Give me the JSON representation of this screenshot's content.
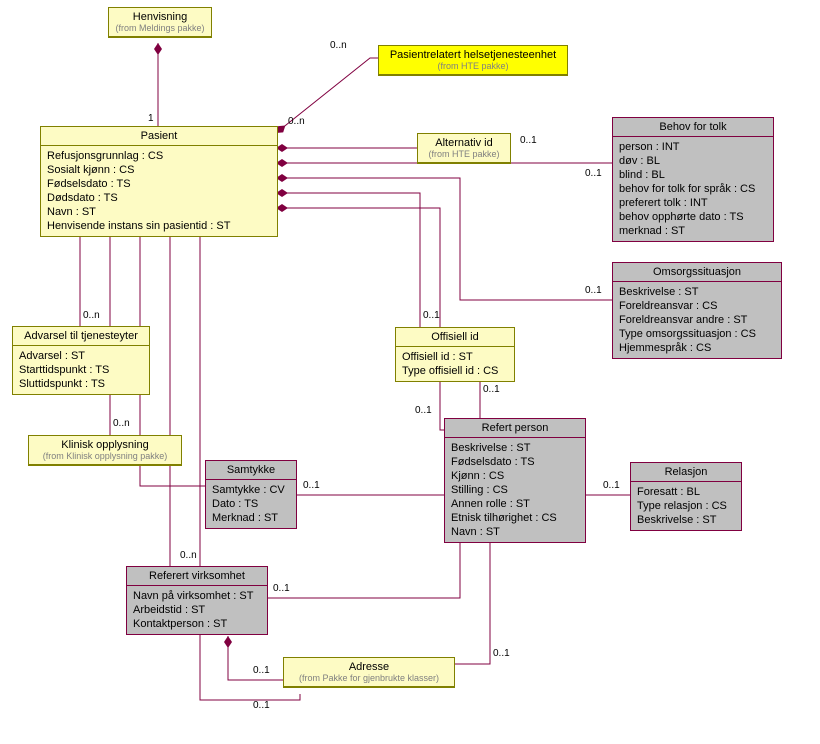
{
  "colors": {
    "yellow": "#fdfbc4",
    "yellowBorder": "#808000",
    "bright": "#ffff00",
    "brightBorder": "#808000",
    "gray": "#c0c0c0",
    "grayBorder": "#800040",
    "line": "#800040",
    "text": "#000000",
    "grayText": "#808080"
  },
  "boxes": {
    "henvisning": {
      "title": "Henvisning",
      "sub": "(from Meldings pakke)"
    },
    "pasient": {
      "title": "Pasient",
      "attrs": [
        "Refusjonsgrunnlag : CS",
        "Sosialt kjønn : CS",
        "Fødselsdato : TS",
        "Dødsdato : TS",
        "Navn : ST",
        "Henvisende instans sin pasientid : ST"
      ]
    },
    "hte": {
      "title": "Pasientrelatert helsetjenesteenhet",
      "sub": "(from HTE pakke)"
    },
    "altid": {
      "title": "Alternativ id",
      "sub": "(from HTE pakke)"
    },
    "behov": {
      "title": "Behov for tolk",
      "attrs": [
        "person : INT",
        "døv : BL",
        "blind : BL",
        "behov for tolk for språk : CS",
        "preferert tolk : INT",
        "behov opphørte dato : TS",
        "merknad : ST"
      ]
    },
    "omsorg": {
      "title": "Omsorgssituasjon",
      "attrs": [
        "Beskrivelse : ST",
        "Foreldreansvar : CS",
        "Foreldreansvar andre : ST",
        "Type omsorgssituasjon : CS",
        "Hjemmespråk : CS"
      ]
    },
    "advarsel": {
      "title": "Advarsel til tjenesteyter",
      "attrs": [
        "Advarsel : ST",
        "Starttidspunkt : TS",
        "Sluttidspunkt : TS"
      ]
    },
    "offid": {
      "title": "Offisiell id",
      "attrs": [
        "Offisiell id : ST",
        "Type offisiell id : CS"
      ]
    },
    "klinisk": {
      "title": "Klinisk opplysning",
      "sub": "(from Klinisk opplysning pakke)"
    },
    "samtykke": {
      "title": "Samtykke",
      "attrs": [
        "Samtykke : CV",
        "Dato : TS",
        "Merknad : ST"
      ]
    },
    "refpers": {
      "title": "Refert person",
      "attrs": [
        "Beskrivelse : ST",
        "Fødselsdato : TS",
        "Kjønn : CS",
        "Stilling : CS",
        "Annen rolle : ST",
        "Etnisk tilhørighet : CS",
        "Navn : ST"
      ]
    },
    "relasjon": {
      "title": "Relasjon",
      "attrs": [
        "Foresatt : BL",
        "Type relasjon : CS",
        "Beskrivelse : ST"
      ]
    },
    "refvirk": {
      "title": "Referert virksomhet",
      "attrs": [
        "Navn på virksomhet : ST",
        "Arbeidstid : ST",
        "Kontaktperson : ST"
      ]
    },
    "adresse": {
      "title": "Adresse",
      "sub": "(from Pakke for gjenbrukte klasser)"
    }
  },
  "mults": {
    "m1": "0..n",
    "m2": "1",
    "m3": "0..1",
    "m4": "0..n",
    "m5": "0..1",
    "m6": "0..1",
    "m7": "0..1",
    "m8": "0..1",
    "m9": "0..n",
    "m10": "0..n",
    "m11": "0..1",
    "m12": "0..1",
    "m13": "0..1",
    "m14": "0..1",
    "m15": "0..n",
    "m16": "0..1",
    "m17": "0..1",
    "m18": "0..1",
    "m19": "0..1"
  }
}
